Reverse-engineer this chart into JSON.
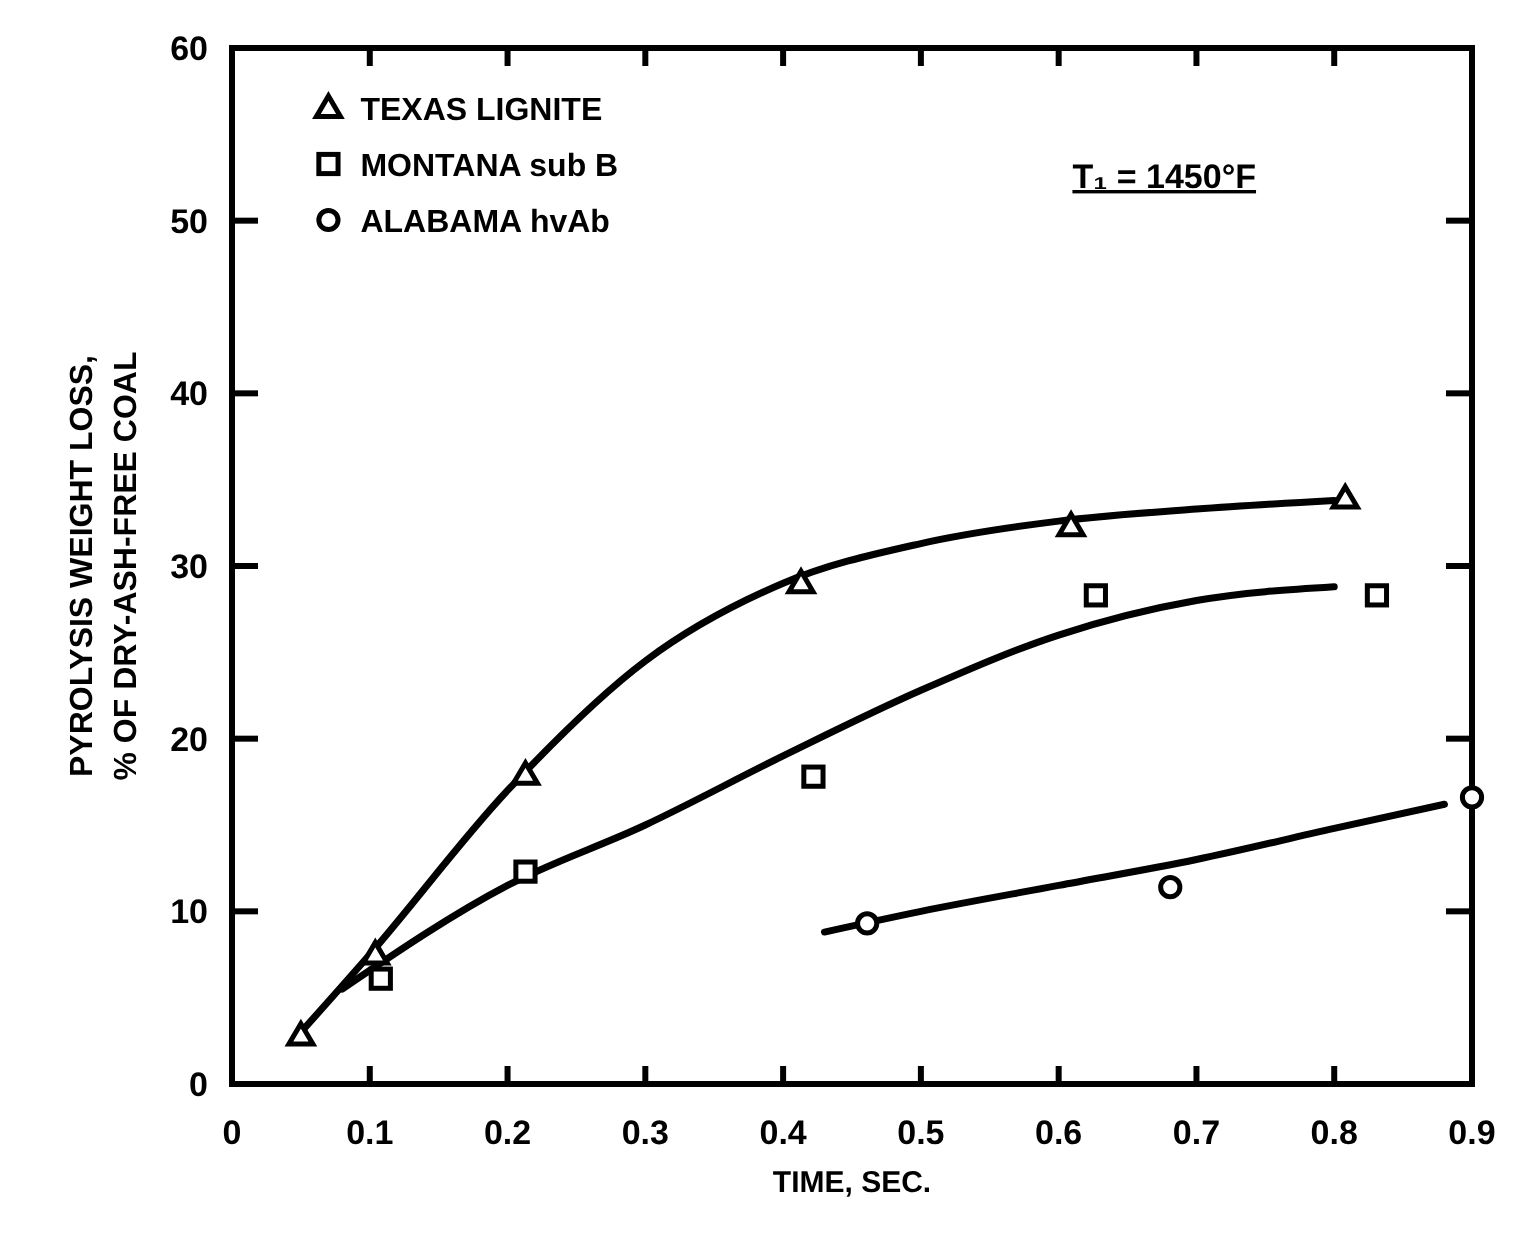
{
  "chart_data": {
    "type": "scatter",
    "xlabel": "TIME, SEC.",
    "ylabel": "PYROLYSIS WEIGHT LOSS,\n% OF DRY-ASH-FREE COAL",
    "xlim": [
      0,
      0.9
    ],
    "ylim": [
      0,
      60
    ],
    "xticks": [
      0,
      0.1,
      0.2,
      0.3,
      0.4,
      0.5,
      0.6,
      0.7,
      0.8,
      0.9
    ],
    "yticks": [
      0,
      10,
      20,
      30,
      40,
      50,
      60
    ],
    "grid": false,
    "legend": "top left",
    "annotations": [
      "T₁ = 1450°F"
    ],
    "series": [
      {
        "name": "TEXAS LIGNITE",
        "marker": "triangle",
        "color": "#000000",
        "x": [
          0.05,
          0.104,
          0.213,
          0.413,
          0.609,
          0.808
        ],
        "values": [
          2.8,
          7.5,
          17.9,
          29,
          32.3,
          33.9
        ]
      },
      {
        "name": "MONTANA sub B",
        "marker": "square",
        "color": "#000000",
        "x": [
          0.108,
          0.213,
          0.422,
          0.627,
          0.831
        ],
        "values": [
          6.1,
          12.3,
          17.8,
          28.3,
          28.3
        ]
      },
      {
        "name": "ALABAMA hvAb",
        "marker": "circle",
        "color": "#000000",
        "x": [
          0.461,
          0.681,
          0.9
        ],
        "values": [
          9.3,
          11.4,
          16.6
        ]
      },
      {
        "type": "line",
        "marker": "none",
        "color": "#000000",
        "x": [
          0.05,
          0.1,
          0.2,
          0.3,
          0.4,
          0.5,
          0.6,
          0.7,
          0.8
        ],
        "values": [
          3,
          7.5,
          17,
          24.5,
          29,
          31.3,
          32.6,
          33.3,
          33.8
        ]
      },
      {
        "type": "line",
        "marker": "none",
        "color": "#000000",
        "x": [
          0.08,
          0.2,
          0.3,
          0.4,
          0.5,
          0.6,
          0.7,
          0.8
        ],
        "values": [
          5.5,
          11.5,
          15,
          19,
          22.8,
          26,
          28,
          28.8
        ]
      },
      {
        "type": "line",
        "marker": "none",
        "color": "#000000",
        "x": [
          0.43,
          0.5,
          0.6,
          0.7,
          0.8,
          0.88
        ],
        "values": [
          8.8,
          10,
          11.5,
          13,
          14.8,
          16.2
        ]
      }
    ]
  }
}
